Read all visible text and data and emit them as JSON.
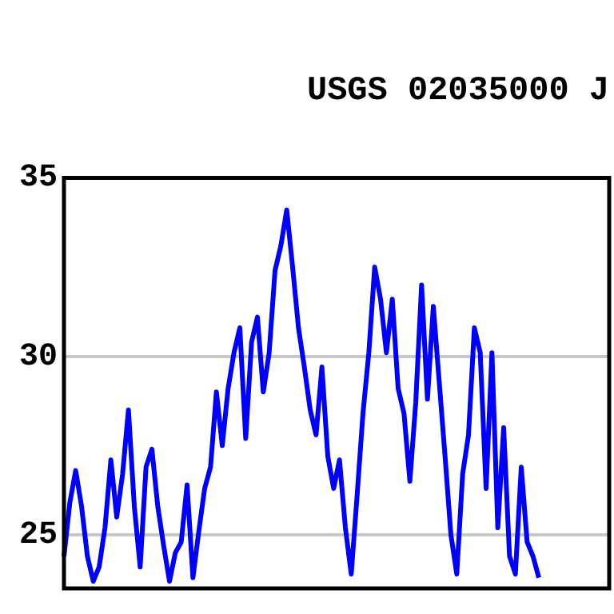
{
  "chart_data": {
    "type": "line",
    "title": "USGS 02035000 J",
    "categories": [
      null,
      null,
      null,
      null,
      null,
      null,
      null,
      null,
      null,
      null,
      null,
      null,
      null,
      null,
      null,
      null,
      null,
      null,
      null,
      null,
      null,
      null,
      null,
      null,
      null,
      null,
      null,
      null,
      null,
      null,
      null,
      null,
      null,
      null,
      null,
      null,
      null,
      null,
      null,
      null,
      null,
      null,
      null,
      null,
      null,
      null,
      null,
      null,
      null,
      null,
      null,
      null,
      null,
      null,
      null,
      null,
      null,
      null,
      null,
      null,
      null,
      null,
      null,
      null,
      null,
      null,
      null,
      null,
      null,
      null,
      null,
      null,
      null,
      null,
      null,
      null,
      null,
      null,
      null,
      null,
      null,
      null,
      null,
      null,
      null,
      null,
      null,
      null,
      null,
      null,
      null,
      null,
      null,
      null
    ],
    "series": [
      {
        "color": "#0000ff",
        "values": [
          24.4,
          25.9,
          26.8,
          25.8,
          24.4,
          23.7,
          24.1,
          25.2,
          27.1,
          25.5,
          26.7,
          28.5,
          25.8,
          24.1,
          26.9,
          27.4,
          25.8,
          24.7,
          23.7,
          24.5,
          24.8,
          26.4,
          23.8,
          25.1,
          26.3,
          26.9,
          29.0,
          27.5,
          29.1,
          30.1,
          30.8,
          27.7,
          30.4,
          31.1,
          29.0,
          30.1,
          32.4,
          33.1,
          34.1,
          32.5,
          30.8,
          29.7,
          28.5,
          27.8,
          29.7,
          27.2,
          26.3,
          27.1,
          25.2,
          23.9,
          26.1,
          28.4,
          30.1,
          32.5,
          31.6,
          30.1,
          31.6,
          29.1,
          28.4,
          26.5,
          28.7,
          32.0,
          28.8,
          31.4,
          29.3,
          27.2,
          25.0,
          23.9,
          26.7,
          27.8,
          30.8,
          30.1,
          26.3,
          30.1,
          25.2,
          28.0,
          24.4,
          23.9,
          26.9,
          24.8,
          24.4,
          23.8,
          null,
          null,
          null,
          null,
          null,
          null,
          null,
          null,
          null,
          null,
          null,
          null
        ]
      }
    ],
    "ylim": [
      23.5,
      35
    ],
    "yticks": [
      25,
      30,
      35
    ],
    "tick_labels": "y",
    "grid": "y",
    "legend": false,
    "marker": "none",
    "line_style": "solid"
  }
}
